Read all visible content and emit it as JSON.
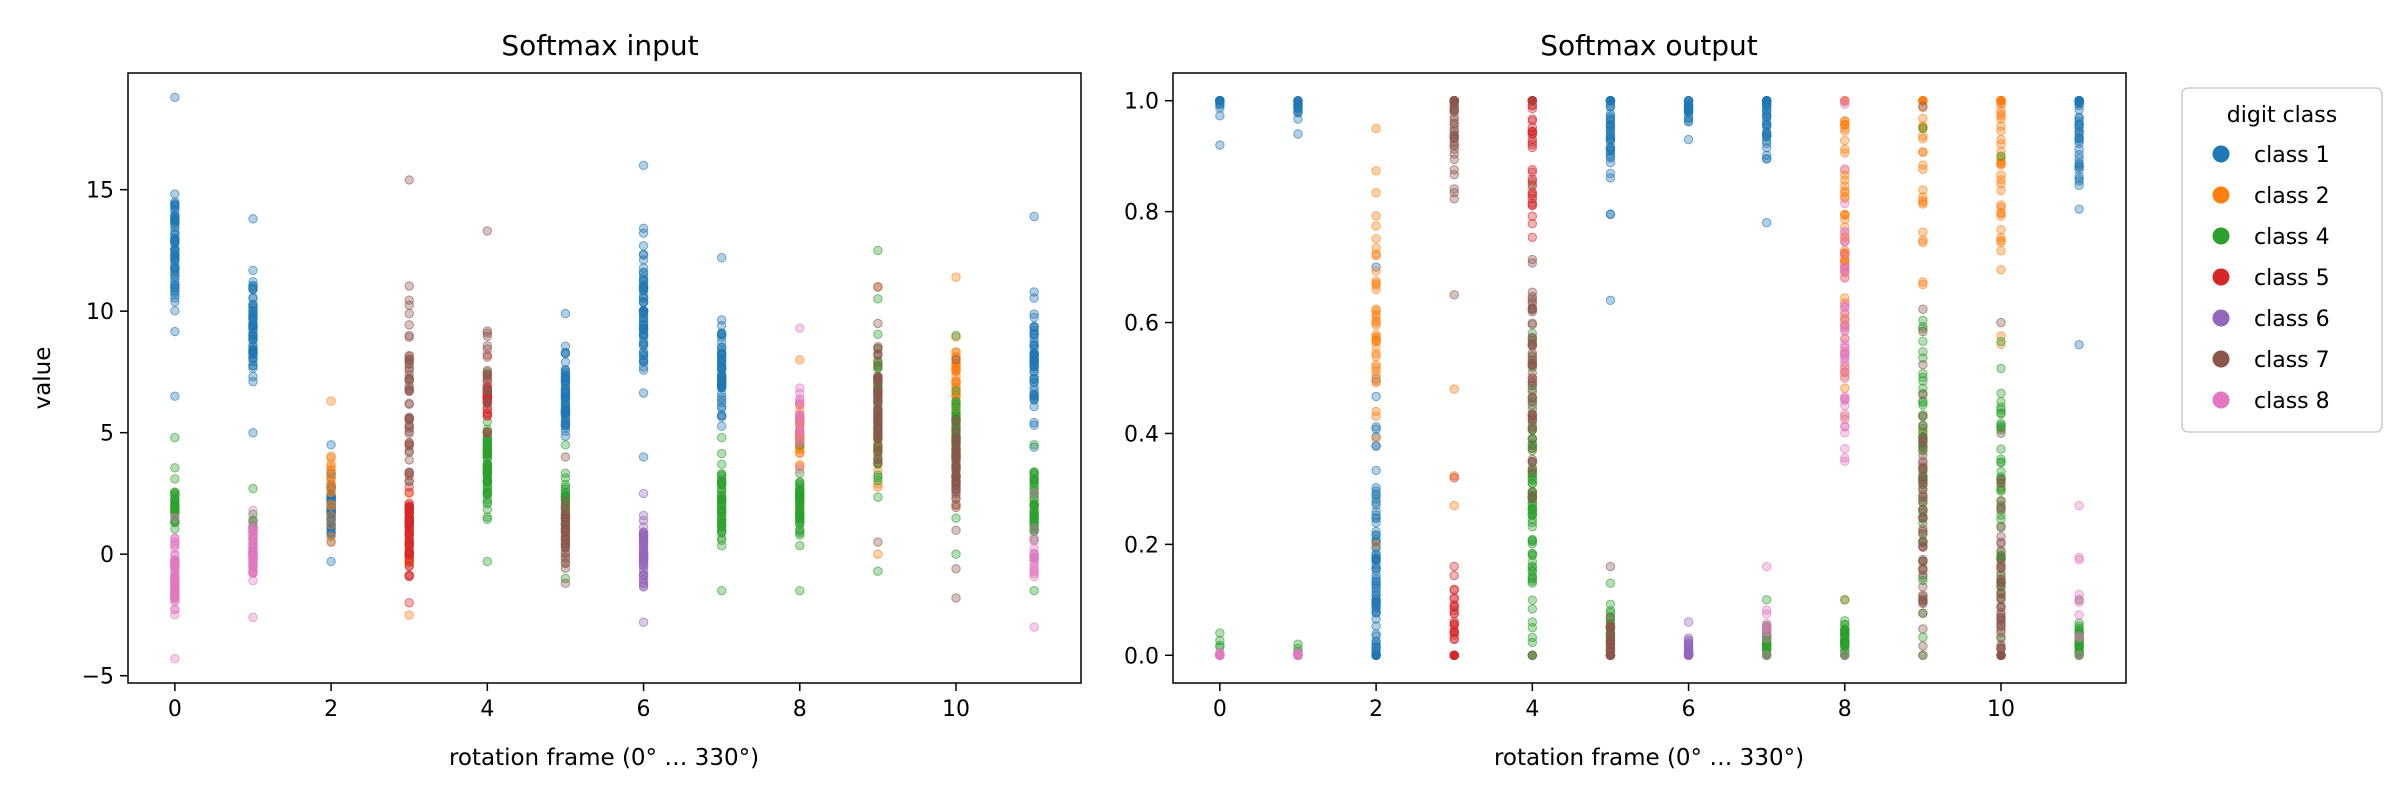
{
  "figure": {
    "legend_title": "digit class"
  },
  "chart_data": [
    {
      "type": "scatter",
      "title": "Softmax input",
      "xlabel": "rotation frame (0° … 330°)",
      "ylabel": "value",
      "xlim": [
        -0.6,
        11.6
      ],
      "ylim": [
        -5.3,
        19.8
      ],
      "xticks": [
        0,
        2,
        4,
        6,
        8,
        10
      ],
      "yticks": [
        -5,
        0,
        5,
        10,
        15
      ],
      "grid": false,
      "marker_alpha": 0.35,
      "series": [
        {
          "name": "class 1",
          "color": "#1f77b4",
          "points": [
            {
              "frame": 0,
              "center": 12.5,
              "min": 6.5,
              "max": 18.8,
              "n": 70
            },
            {
              "frame": 1,
              "center": 9.0,
              "min": 5.0,
              "max": 13.8,
              "n": 60
            },
            {
              "frame": 2,
              "center": 2.0,
              "min": -0.3,
              "max": 4.5,
              "n": 80
            },
            {
              "frame": 5,
              "center": 6.5,
              "min": 2.5,
              "max": 9.9,
              "n": 60
            },
            {
              "frame": 6,
              "center": 10.0,
              "min": 4.0,
              "max": 16.0,
              "n": 70
            },
            {
              "frame": 7,
              "center": 7.5,
              "min": 3.0,
              "max": 12.2,
              "n": 60
            },
            {
              "frame": 11,
              "center": 8.0,
              "min": 3.0,
              "max": 13.9,
              "n": 60
            }
          ]
        },
        {
          "name": "class 2",
          "color": "#ff7f0e",
          "points": [
            {
              "frame": 2,
              "center": 3.0,
              "min": 0.5,
              "max": 6.3,
              "n": 20
            },
            {
              "frame": 3,
              "center": 0.0,
              "min": -2.5,
              "max": 2.5,
              "n": 15
            },
            {
              "frame": 8,
              "center": 5.0,
              "min": 2.0,
              "max": 8.0,
              "n": 40
            },
            {
              "frame": 9,
              "center": 5.0,
              "min": 0.0,
              "max": 11.0,
              "n": 25
            },
            {
              "frame": 10,
              "center": 7.0,
              "min": 2.0,
              "max": 11.4,
              "n": 40
            }
          ]
        },
        {
          "name": "class 4",
          "color": "#2ca02c",
          "points": [
            {
              "frame": 0,
              "center": 2.0,
              "min": -0.5,
              "max": 4.8,
              "n": 30
            },
            {
              "frame": 1,
              "center": 1.0,
              "min": -0.5,
              "max": 2.7,
              "n": 15
            },
            {
              "frame": 4,
              "center": 3.5,
              "min": -0.3,
              "max": 7.5,
              "n": 70
            },
            {
              "frame": 5,
              "center": 2.0,
              "min": -1.0,
              "max": 4.5,
              "n": 30
            },
            {
              "frame": 7,
              "center": 2.0,
              "min": -1.5,
              "max": 4.8,
              "n": 50
            },
            {
              "frame": 8,
              "center": 2.0,
              "min": -1.5,
              "max": 4.5,
              "n": 50
            },
            {
              "frame": 9,
              "center": 6.0,
              "min": -0.7,
              "max": 12.5,
              "n": 40
            },
            {
              "frame": 10,
              "center": 5.0,
              "min": 0.0,
              "max": 9.0,
              "n": 40
            },
            {
              "frame": 11,
              "center": 2.0,
              "min": -1.5,
              "max": 4.5,
              "n": 50
            }
          ]
        },
        {
          "name": "class 5",
          "color": "#d62728",
          "points": [
            {
              "frame": 3,
              "center": 1.0,
              "min": -2.0,
              "max": 4.5,
              "n": 70
            },
            {
              "frame": 4,
              "center": 6.5,
              "min": 5.0,
              "max": 8.2,
              "n": 30
            }
          ]
        },
        {
          "name": "class 6",
          "color": "#9467bd",
          "points": [
            {
              "frame": 6,
              "center": 0.0,
              "min": -2.8,
              "max": 2.5,
              "n": 60
            }
          ]
        },
        {
          "name": "class 7",
          "color": "#8c564b",
          "points": [
            {
              "frame": 3,
              "center": 7.0,
              "min": 3.0,
              "max": 15.4,
              "n": 50
            },
            {
              "frame": 4,
              "center": 7.5,
              "min": 5.0,
              "max": 13.3,
              "n": 20
            },
            {
              "frame": 5,
              "center": 1.0,
              "min": -1.2,
              "max": 4.0,
              "n": 40
            },
            {
              "frame": 9,
              "center": 6.0,
              "min": 0.5,
              "max": 11.0,
              "n": 60
            },
            {
              "frame": 10,
              "center": 3.5,
              "min": -1.8,
              "max": 8.0,
              "n": 60
            }
          ]
        },
        {
          "name": "class 8",
          "color": "#e377c2",
          "points": [
            {
              "frame": 0,
              "center": -1.0,
              "min": -4.3,
              "max": 1.5,
              "n": 60
            },
            {
              "frame": 1,
              "center": 0.0,
              "min": -2.6,
              "max": 1.8,
              "n": 60
            },
            {
              "frame": 8,
              "center": 6.0,
              "min": 3.5,
              "max": 9.3,
              "n": 20
            },
            {
              "frame": 11,
              "center": 0.0,
              "min": -3.0,
              "max": 2.5,
              "n": 20
            }
          ]
        }
      ]
    },
    {
      "type": "scatter",
      "title": "Softmax output",
      "xlabel": "rotation frame (0° … 330°)",
      "ylabel": "",
      "xlim": [
        -0.6,
        11.6
      ],
      "ylim": [
        -0.05,
        1.05
      ],
      "xticks": [
        0,
        2,
        4,
        6,
        8,
        10
      ],
      "yticks": [
        0.0,
        0.2,
        0.4,
        0.6,
        0.8,
        1.0
      ],
      "grid": false,
      "marker_alpha": 0.35,
      "series": [
        {
          "name": "class 1",
          "color": "#1f77b4",
          "points": [
            {
              "frame": 0,
              "center": 0.995,
              "min": 0.92,
              "max": 1.0,
              "n": 20
            },
            {
              "frame": 1,
              "center": 0.99,
              "min": 0.94,
              "max": 1.0,
              "n": 20
            },
            {
              "frame": 2,
              "center": 0.15,
              "min": 0.0,
              "max": 0.7,
              "n": 90
            },
            {
              "frame": 5,
              "center": 0.96,
              "min": 0.64,
              "max": 1.0,
              "n": 50
            },
            {
              "frame": 6,
              "center": 0.99,
              "min": 0.93,
              "max": 1.0,
              "n": 25
            },
            {
              "frame": 7,
              "center": 0.96,
              "min": 0.78,
              "max": 1.0,
              "n": 40
            },
            {
              "frame": 11,
              "center": 0.95,
              "min": 0.56,
              "max": 1.0,
              "n": 50
            }
          ]
        },
        {
          "name": "class 2",
          "color": "#ff7f0e",
          "points": [
            {
              "frame": 2,
              "center": 0.6,
              "min": 0.2,
              "max": 0.95,
              "n": 40
            },
            {
              "frame": 3,
              "center": 0.3,
              "min": 0.27,
              "max": 0.48,
              "n": 3
            },
            {
              "frame": 8,
              "center": 0.75,
              "min": 0.1,
              "max": 1.0,
              "n": 60
            },
            {
              "frame": 9,
              "center": 0.9,
              "min": 0.4,
              "max": 1.0,
              "n": 30
            },
            {
              "frame": 10,
              "center": 0.92,
              "min": 0.3,
              "max": 1.0,
              "n": 50
            }
          ]
        },
        {
          "name": "class 4",
          "color": "#2ca02c",
          "points": [
            {
              "frame": 0,
              "center": 0.02,
              "min": 0.0,
              "max": 0.04,
              "n": 5
            },
            {
              "frame": 1,
              "center": 0.01,
              "min": 0.0,
              "max": 0.02,
              "n": 5
            },
            {
              "frame": 4,
              "center": 0.3,
              "min": 0.0,
              "max": 0.85,
              "n": 80
            },
            {
              "frame": 5,
              "center": 0.05,
              "min": 0.0,
              "max": 0.13,
              "n": 20
            },
            {
              "frame": 7,
              "center": 0.02,
              "min": 0.0,
              "max": 0.1,
              "n": 40
            },
            {
              "frame": 8,
              "center": 0.03,
              "min": 0.0,
              "max": 0.1,
              "n": 40
            },
            {
              "frame": 9,
              "center": 0.4,
              "min": 0.0,
              "max": 0.95,
              "n": 50
            },
            {
              "frame": 10,
              "center": 0.3,
              "min": 0.0,
              "max": 0.9,
              "n": 50
            },
            {
              "frame": 11,
              "center": 0.03,
              "min": 0.0,
              "max": 0.1,
              "n": 40
            }
          ]
        },
        {
          "name": "class 5",
          "color": "#d62728",
          "points": [
            {
              "frame": 3,
              "center": 0.01,
              "min": 0.0,
              "max": 0.32,
              "n": 40
            },
            {
              "frame": 4,
              "center": 0.9,
              "min": 0.5,
              "max": 1.0,
              "n": 40
            }
          ]
        },
        {
          "name": "class 6",
          "color": "#9467bd",
          "points": [
            {
              "frame": 6,
              "center": 0.005,
              "min": 0.0,
              "max": 0.06,
              "n": 30
            }
          ]
        },
        {
          "name": "class 7",
          "color": "#8c564b",
          "points": [
            {
              "frame": 3,
              "center": 0.97,
              "min": 0.65,
              "max": 1.0,
              "n": 50
            },
            {
              "frame": 4,
              "center": 0.5,
              "min": 0.0,
              "max": 1.0,
              "n": 60
            },
            {
              "frame": 5,
              "center": 0.02,
              "min": 0.0,
              "max": 0.16,
              "n": 40
            },
            {
              "frame": 9,
              "center": 0.3,
              "min": 0.0,
              "max": 0.99,
              "n": 60
            },
            {
              "frame": 10,
              "center": 0.1,
              "min": 0.0,
              "max": 0.6,
              "n": 60
            }
          ]
        },
        {
          "name": "class 8",
          "color": "#e377c2",
          "points": [
            {
              "frame": 0,
              "center": 0.0,
              "min": 0.0,
              "max": 0.005,
              "n": 30
            },
            {
              "frame": 1,
              "center": 0.0,
              "min": 0.0,
              "max": 0.005,
              "n": 30
            },
            {
              "frame": 7,
              "center": 0.05,
              "min": 0.0,
              "max": 0.16,
              "n": 10
            },
            {
              "frame": 8,
              "center": 0.6,
              "min": 0.0,
              "max": 1.0,
              "n": 50
            },
            {
              "frame": 11,
              "center": 0.1,
              "min": 0.0,
              "max": 0.27,
              "n": 10
            }
          ]
        }
      ]
    }
  ]
}
